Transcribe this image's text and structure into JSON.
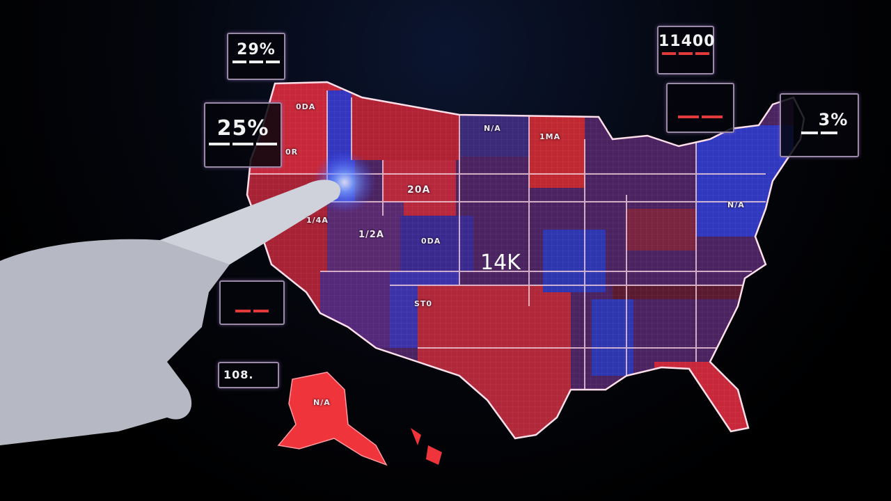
{
  "panels": {
    "top_left": "29%",
    "left": "25%",
    "top_right": "11400",
    "right": "3%",
    "alaska_side": "108."
  },
  "map": {
    "center_label": "14K",
    "state_labels": [
      "0DA",
      "0R",
      "20A",
      "1/2A",
      "0DA",
      "1/4A",
      "ST0",
      "N/A",
      "1MA",
      "N/A",
      "N/A"
    ]
  },
  "colors": {
    "red": "#c8283a",
    "blue": "#2e2fa8",
    "purple": "#4a2360",
    "outline": "#f4d0dc"
  }
}
